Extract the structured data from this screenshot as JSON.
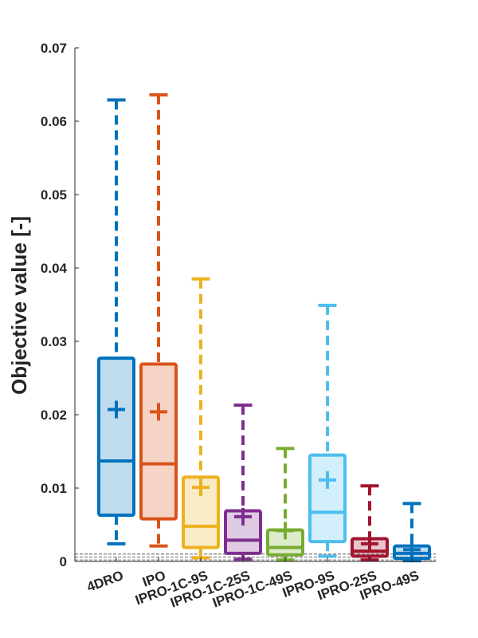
{
  "chart_data": {
    "type": "box",
    "title": "",
    "xlabel": "",
    "ylabel": "Objective value [-]",
    "ylim": [
      0,
      0.07
    ],
    "yticks": [
      0,
      0.01,
      0.02,
      0.03,
      0.04,
      0.05,
      0.06,
      0.07
    ],
    "ytick_labels": [
      "0",
      "0.01",
      "0.02",
      "0.03",
      "0.04",
      "0.05",
      "0.06",
      "0.07"
    ],
    "reference_lines": [
      0.0002,
      0.0006,
      0.001
    ],
    "categories": [
      "4DRO",
      "IPO",
      "IPRO-1C-9S",
      "IPRO-1C-25S",
      "IPRO-1C-49S",
      "IPRO-9S",
      "IPRO-25S",
      "IPRO-49S"
    ],
    "series": [
      {
        "name": "4DRO",
        "color": "#0072BD",
        "whisker_low": 0.0024,
        "q1": 0.0063,
        "median": 0.0137,
        "q3": 0.0277,
        "whisker_high": 0.0629,
        "mean": 0.0207
      },
      {
        "name": "IPO",
        "color": "#D95319",
        "whisker_low": 0.0021,
        "q1": 0.0058,
        "median": 0.0133,
        "q3": 0.0269,
        "whisker_high": 0.0636,
        "mean": 0.0204
      },
      {
        "name": "IPRO-1C-9S",
        "color": "#EDB120",
        "whisker_low": 0.0005,
        "q1": 0.0019,
        "median": 0.0048,
        "q3": 0.0115,
        "whisker_high": 0.0385,
        "mean": 0.0101
      },
      {
        "name": "IPRO-1C-25S",
        "color": "#7E2F8E",
        "whisker_low": 0.0003,
        "q1": 0.0011,
        "median": 0.0029,
        "q3": 0.0069,
        "whisker_high": 0.0213,
        "mean": 0.0061
      },
      {
        "name": "IPRO-1C-49S",
        "color": "#77AC30",
        "whisker_low": 0.0002,
        "q1": 0.0009,
        "median": 0.0019,
        "q3": 0.0043,
        "whisker_high": 0.0154,
        "mean": 0.0042
      },
      {
        "name": "IPRO-9S",
        "color": "#4DBEEE",
        "whisker_low": 0.0007,
        "q1": 0.0027,
        "median": 0.0067,
        "q3": 0.0145,
        "whisker_high": 0.0349,
        "mean": 0.0111
      },
      {
        "name": "IPRO-25S",
        "color": "#A2142F",
        "whisker_low": 0.0002,
        "q1": 0.0007,
        "median": 0.0014,
        "q3": 0.0031,
        "whisker_high": 0.0103,
        "mean": 0.0024
      },
      {
        "name": "IPRO-49S",
        "color": "#0072BD",
        "whisker_low": 0.0001,
        "q1": 0.0004,
        "median": 0.0011,
        "q3": 0.0021,
        "whisker_high": 0.0079,
        "mean": 0.0016
      }
    ]
  }
}
